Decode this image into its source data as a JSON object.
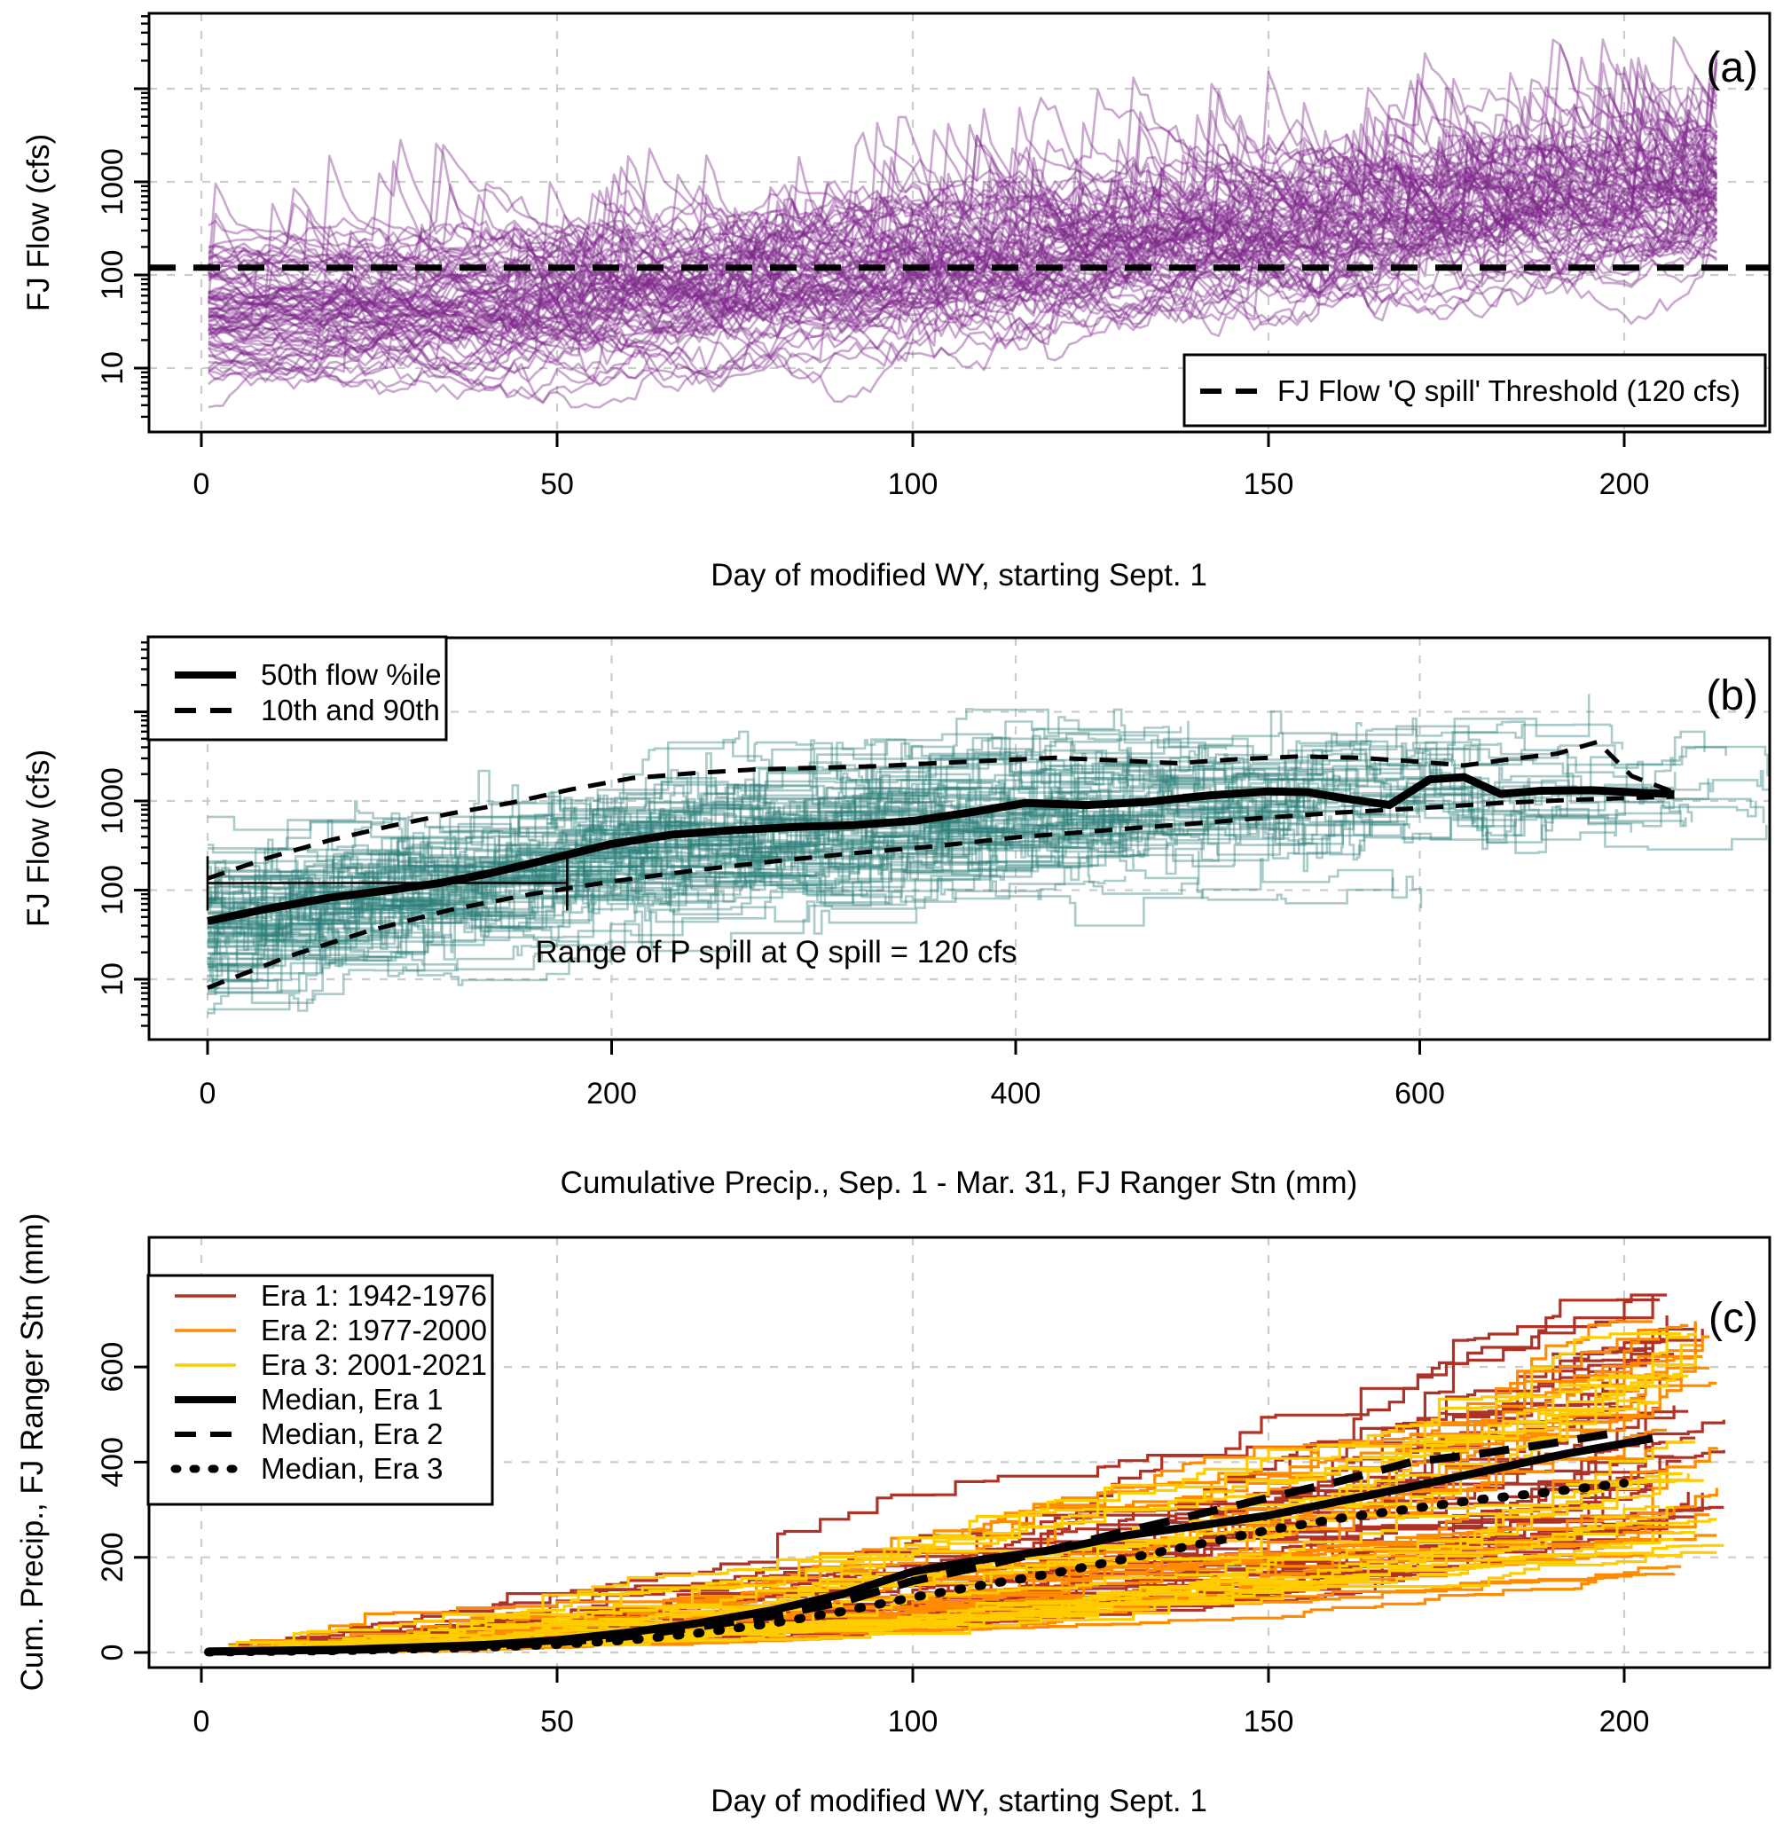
{
  "figure": {
    "description": "Three stacked hydrology panels: FJ flow ensembles vs day and cumulative precipitation, and cumulative precipitation by era",
    "background_color": "#ffffff",
    "text_color": "#000000",
    "grid_color": "#cccccc"
  },
  "chart_data": [
    {
      "type": "line",
      "panel_label": "(a)",
      "x_axis": {
        "label": "Day of modified WY, starting Sept. 1",
        "ticks": [
          "0",
          "50",
          "100",
          "150",
          "200"
        ],
        "tick_values": [
          0,
          50,
          100,
          150,
          200
        ],
        "range": [
          0,
          220
        ],
        "scale": "linear",
        "gridlines": [
          0,
          50,
          100,
          150,
          200
        ]
      },
      "y_axis": {
        "label": "FJ Flow (cfs)",
        "ticks": [
          "10",
          "100",
          "1000"
        ],
        "tick_values": [
          10,
          100,
          1000
        ],
        "unlabeled_major": [
          10000
        ],
        "range": [
          2,
          64000
        ],
        "scale": "log10",
        "gridlines": [
          10,
          100,
          1000,
          10000
        ]
      },
      "threshold": {
        "value": 120,
        "style": "dashed-black"
      },
      "legend": {
        "position": "bottom-right",
        "entries": [
          {
            "label": "FJ Flow 'Q spill' Threshold (120 cfs)",
            "style": "dashed",
            "color": "#000000"
          }
        ]
      },
      "ensemble": {
        "name": "FJ daily flow traces, one per water year",
        "n_series": 80,
        "color": "#7e2689",
        "alpha": 0.4,
        "day_range": [
          1,
          213
        ],
        "median_log10_cfs_by_day": [
          [
            1,
            1.68
          ],
          [
            30,
            1.72
          ],
          [
            50,
            1.78
          ],
          [
            70,
            1.88
          ],
          [
            90,
            2.02
          ],
          [
            110,
            2.17
          ],
          [
            130,
            2.32
          ],
          [
            150,
            2.47
          ],
          [
            170,
            2.62
          ],
          [
            190,
            2.76
          ],
          [
            213,
            2.9
          ]
        ],
        "start_value_range_cfs": [
          4,
          400
        ],
        "end_value_range_cfs": [
          60,
          5000
        ],
        "peak_max_cfs": 35000
      }
    },
    {
      "type": "line",
      "panel_label": "(b)",
      "x_axis": {
        "label": "Cumulative Precip., Sep. 1 - Mar. 31, FJ Ranger Stn (mm)",
        "ticks": [
          "0",
          "200",
          "400",
          "600"
        ],
        "tick_values": [
          0,
          200,
          400,
          600
        ],
        "range": [
          0,
          773
        ],
        "scale": "linear",
        "gridlines": [
          0,
          200,
          400,
          600
        ]
      },
      "y_axis": {
        "label": "FJ Flow (cfs)",
        "ticks": [
          "10",
          "100",
          "1000"
        ],
        "tick_values": [
          10,
          100,
          1000
        ],
        "unlabeled_major": [
          10000
        ],
        "range": [
          4,
          67000
        ],
        "scale": "log10",
        "gridlines": [
          10,
          100,
          1000,
          10000
        ]
      },
      "legend": {
        "position": "top-left",
        "entries": [
          {
            "label": "50th flow %ile",
            "style": "solid",
            "color": "#000000"
          },
          {
            "label": "10th and 90th",
            "style": "dashed",
            "color": "#000000"
          }
        ]
      },
      "annotation": {
        "text": "Range of P spill at Q spill = 120 cfs",
        "points_to": "horizontal range bar at 120 cfs"
      },
      "range_bar": {
        "flow_cfs": 120,
        "precip_start_mm": 0,
        "precip_end_mm": 178,
        "cap_low_cfs": 59,
        "cap_high_cfs": 240
      },
      "percentiles": {
        "p50": [
          [
            0,
            45
          ],
          [
            30,
            62
          ],
          [
            60,
            82
          ],
          [
            90,
            100
          ],
          [
            115,
            120
          ],
          [
            140,
            155
          ],
          [
            170,
            225
          ],
          [
            200,
            330
          ],
          [
            230,
            420
          ],
          [
            260,
            470
          ],
          [
            290,
            510
          ],
          [
            320,
            535
          ],
          [
            350,
            600
          ],
          [
            380,
            760
          ],
          [
            405,
            950
          ],
          [
            435,
            900
          ],
          [
            465,
            975
          ],
          [
            495,
            1150
          ],
          [
            525,
            1280
          ],
          [
            545,
            1250
          ],
          [
            565,
            1050
          ],
          [
            585,
            900
          ],
          [
            605,
            1750
          ],
          [
            622,
            1850
          ],
          [
            640,
            1200
          ],
          [
            660,
            1300
          ],
          [
            685,
            1320
          ],
          [
            705,
            1250
          ],
          [
            726,
            1190
          ]
        ],
        "p10": [
          [
            0,
            8
          ],
          [
            40,
            18
          ],
          [
            80,
            35
          ],
          [
            120,
            60
          ],
          [
            160,
            90
          ],
          [
            200,
            125
          ],
          [
            240,
            165
          ],
          [
            280,
            210
          ],
          [
            320,
            260
          ],
          [
            360,
            310
          ],
          [
            400,
            390
          ],
          [
            440,
            460
          ],
          [
            480,
            540
          ],
          [
            520,
            640
          ],
          [
            560,
            740
          ],
          [
            600,
            830
          ],
          [
            640,
            950
          ],
          [
            680,
            1040
          ],
          [
            726,
            1120
          ]
        ],
        "p90": [
          [
            0,
            135
          ],
          [
            30,
            230
          ],
          [
            60,
            360
          ],
          [
            90,
            520
          ],
          [
            120,
            720
          ],
          [
            150,
            950
          ],
          [
            180,
            1350
          ],
          [
            210,
            1800
          ],
          [
            240,
            2050
          ],
          [
            270,
            2250
          ],
          [
            300,
            2350
          ],
          [
            330,
            2450
          ],
          [
            360,
            2650
          ],
          [
            390,
            2850
          ],
          [
            420,
            3050
          ],
          [
            450,
            2850
          ],
          [
            480,
            2650
          ],
          [
            510,
            2950
          ],
          [
            540,
            3150
          ],
          [
            570,
            3050
          ],
          [
            600,
            2750
          ],
          [
            622,
            2500
          ],
          [
            645,
            2950
          ],
          [
            668,
            3400
          ],
          [
            688,
            4600
          ],
          [
            705,
            1900
          ],
          [
            726,
            1250
          ]
        ]
      },
      "ensemble": {
        "name": "flow vs cumulative precipitation traces, one per water year",
        "n_series": 80,
        "color": "#2a7d78",
        "alpha": 0.4,
        "precip_total_range_mm": [
          380,
          775
        ],
        "base_log10_cfs_by_precip": [
          [
            0,
            1.62
          ],
          [
            50,
            1.8
          ],
          [
            100,
            2.0
          ],
          [
            150,
            2.2
          ],
          [
            200,
            2.44
          ],
          [
            260,
            2.6
          ],
          [
            320,
            2.72
          ],
          [
            380,
            2.85
          ],
          [
            440,
            2.95
          ],
          [
            520,
            3.02
          ],
          [
            600,
            3.08
          ],
          [
            700,
            3.1
          ],
          [
            780,
            3.1
          ]
        ]
      }
    },
    {
      "type": "line",
      "panel_label": "(c)",
      "x_axis": {
        "label": "Day of modified WY, starting Sept. 1",
        "ticks": [
          "0",
          "50",
          "100",
          "150",
          "200"
        ],
        "tick_values": [
          0,
          50,
          100,
          150,
          200
        ],
        "range": [
          0,
          220
        ],
        "scale": "linear",
        "gridlines": [
          0,
          50,
          100,
          150,
          200
        ]
      },
      "y_axis": {
        "label": "Cum. Precip., FJ Ranger Stn (mm)",
        "ticks": [
          "0",
          "200",
          "400",
          "600"
        ],
        "tick_values": [
          0,
          200,
          400,
          600
        ],
        "range": [
          0,
          870
        ],
        "scale": "linear",
        "gridlines": [
          0,
          200,
          400,
          600
        ]
      },
      "legend": {
        "position": "top-left",
        "entries": [
          {
            "label": "Era 1: 1942-1976",
            "style": "thin-solid",
            "color": "#b03126"
          },
          {
            "label": "Era 2: 1977-2000",
            "style": "thin-solid",
            "color": "#ff8c00"
          },
          {
            "label": "Era 3: 2001-2021",
            "style": "thin-solid",
            "color": "#ffcc00"
          },
          {
            "label": "Median, Era 1",
            "style": "solid",
            "color": "#000000"
          },
          {
            "label": "Median, Era 2",
            "style": "dashed",
            "color": "#000000"
          },
          {
            "label": "Median, Era 3",
            "style": "dotted",
            "color": "#000000"
          }
        ]
      },
      "medians": {
        "era1": [
          [
            1,
            2
          ],
          [
            20,
            6
          ],
          [
            40,
            16
          ],
          [
            50,
            26
          ],
          [
            60,
            42
          ],
          [
            70,
            62
          ],
          [
            80,
            88
          ],
          [
            90,
            122
          ],
          [
            100,
            170
          ],
          [
            110,
            196
          ],
          [
            120,
            216
          ],
          [
            130,
            246
          ],
          [
            140,
            266
          ],
          [
            150,
            288
          ],
          [
            160,
            318
          ],
          [
            170,
            348
          ],
          [
            180,
            380
          ],
          [
            192,
            418
          ],
          [
            204,
            450
          ]
        ],
        "era2": [
          [
            1,
            2
          ],
          [
            20,
            5
          ],
          [
            40,
            13
          ],
          [
            50,
            21
          ],
          [
            60,
            34
          ],
          [
            70,
            54
          ],
          [
            80,
            76
          ],
          [
            90,
            106
          ],
          [
            100,
            150
          ],
          [
            110,
            182
          ],
          [
            120,
            218
          ],
          [
            130,
            255
          ],
          [
            140,
            290
          ],
          [
            150,
            325
          ],
          [
            160,
            360
          ],
          [
            170,
            400
          ],
          [
            180,
            418
          ],
          [
            190,
            440
          ],
          [
            199,
            462
          ]
        ],
        "era3": [
          [
            1,
            1
          ],
          [
            20,
            4
          ],
          [
            40,
            11
          ],
          [
            50,
            17
          ],
          [
            60,
            26
          ],
          [
            70,
            41
          ],
          [
            80,
            61
          ],
          [
            90,
            86
          ],
          [
            100,
            116
          ],
          [
            110,
            142
          ],
          [
            120,
            167
          ],
          [
            130,
            197
          ],
          [
            140,
            227
          ],
          [
            150,
            257
          ],
          [
            160,
            282
          ],
          [
            170,
            302
          ],
          [
            180,
            322
          ],
          [
            190,
            338
          ],
          [
            200,
            356
          ]
        ]
      },
      "eras": [
        {
          "name": "Era 1: 1942-1976",
          "n_series": 35,
          "color": "#b03126",
          "total_precip_range_mm": [
            260,
            760
          ]
        },
        {
          "name": "Era 2: 1977-2000",
          "n_series": 24,
          "color": "#ff8c00",
          "total_precip_range_mm": [
            150,
            720
          ]
        },
        {
          "name": "Era 3: 2001-2021",
          "n_series": 21,
          "color": "#ffcc00",
          "total_precip_range_mm": [
            210,
            690
          ]
        }
      ],
      "day_range": [
        1,
        214
      ]
    }
  ]
}
